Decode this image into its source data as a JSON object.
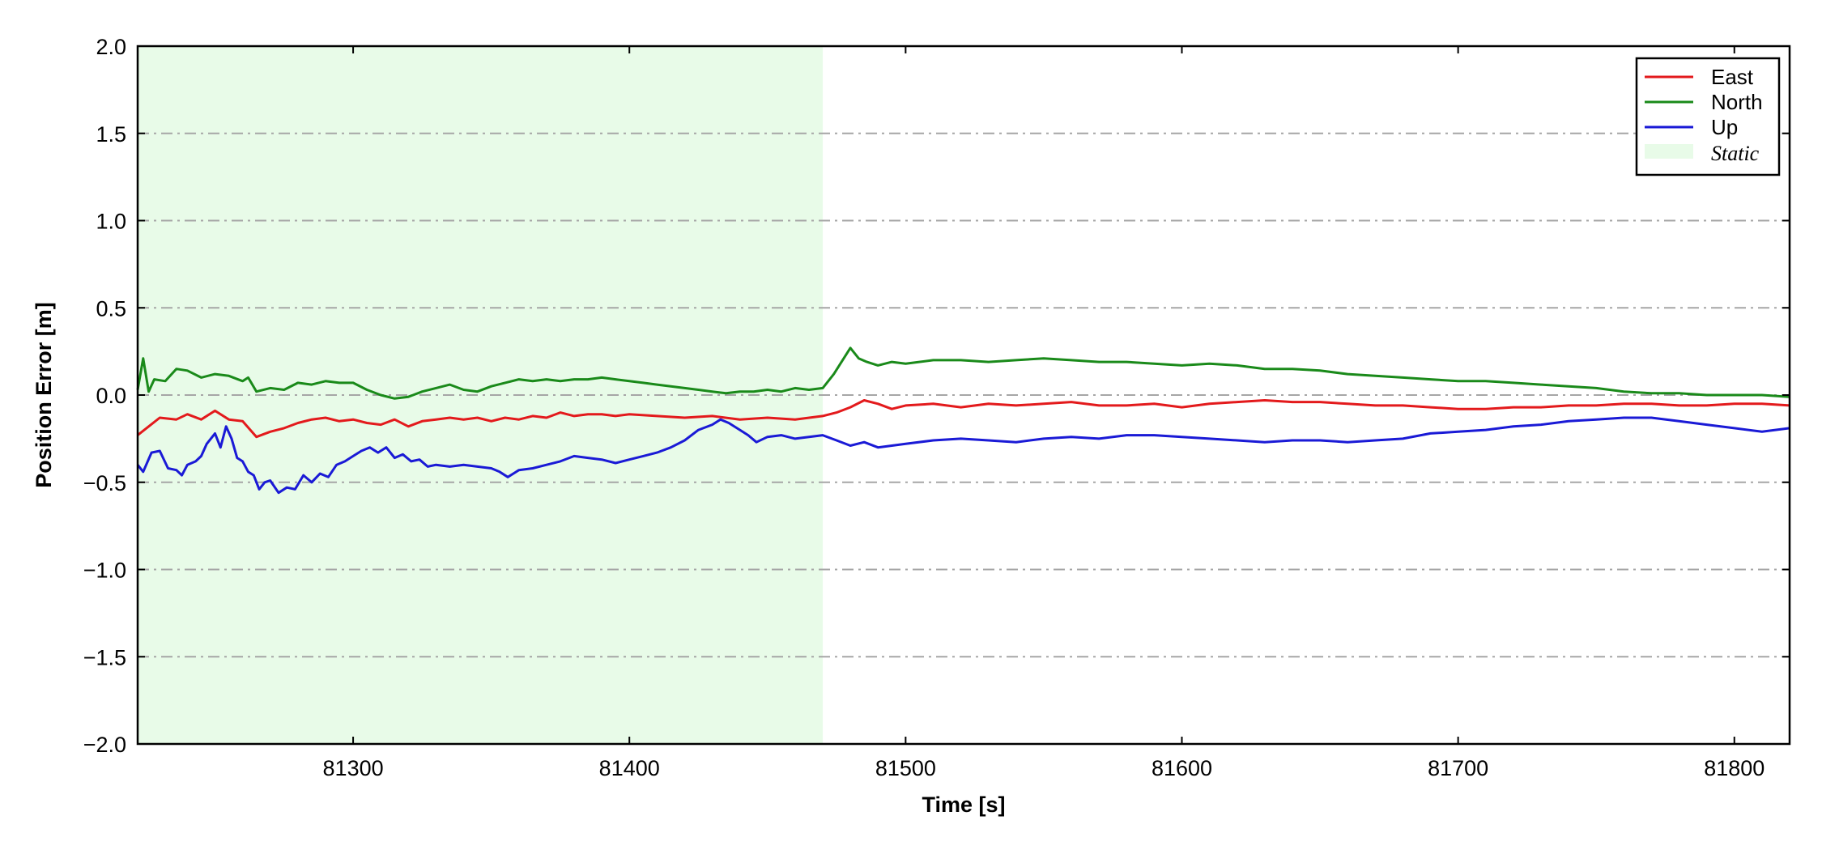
{
  "chart_data": {
    "type": "line",
    "title": "",
    "xlabel": "Time [s]",
    "ylabel": "Position Error [m]",
    "xlim": [
      81222,
      81820
    ],
    "ylim": [
      -2.0,
      2.0
    ],
    "xticks": [
      81300,
      81400,
      81500,
      81600,
      81700,
      81800
    ],
    "xtick_labels": [
      "81300",
      "81400",
      "81500",
      "81600",
      "81700",
      "81800"
    ],
    "yticks": [
      -2.0,
      -1.5,
      -1.0,
      -0.5,
      0.0,
      0.5,
      1.0,
      1.5,
      2.0
    ],
    "ytick_labels": [
      "−2.0",
      "−1.5",
      "−1.0",
      "−0.5",
      "0.0",
      "0.5",
      "1.0",
      "1.5",
      "2.0"
    ],
    "grid": "horizontal dash-dot",
    "legend_position": "top-right",
    "shaded_region": {
      "name": "Static",
      "x_range": [
        81222,
        81470
      ],
      "color": "#e8fbe8"
    },
    "series": [
      {
        "name": "East",
        "color": "#e31a1c",
        "points": [
          [
            81222,
            -0.23
          ],
          [
            81226,
            -0.18
          ],
          [
            81230,
            -0.13
          ],
          [
            81236,
            -0.14
          ],
          [
            81240,
            -0.11
          ],
          [
            81245,
            -0.14
          ],
          [
            81250,
            -0.09
          ],
          [
            81255,
            -0.14
          ],
          [
            81260,
            -0.15
          ],
          [
            81265,
            -0.24
          ],
          [
            81270,
            -0.21
          ],
          [
            81275,
            -0.19
          ],
          [
            81280,
            -0.16
          ],
          [
            81285,
            -0.14
          ],
          [
            81290,
            -0.13
          ],
          [
            81295,
            -0.15
          ],
          [
            81300,
            -0.14
          ],
          [
            81305,
            -0.16
          ],
          [
            81310,
            -0.17
          ],
          [
            81315,
            -0.14
          ],
          [
            81320,
            -0.18
          ],
          [
            81325,
            -0.15
          ],
          [
            81330,
            -0.14
          ],
          [
            81335,
            -0.13
          ],
          [
            81340,
            -0.14
          ],
          [
            81345,
            -0.13
          ],
          [
            81350,
            -0.15
          ],
          [
            81355,
            -0.13
          ],
          [
            81360,
            -0.14
          ],
          [
            81365,
            -0.12
          ],
          [
            81370,
            -0.13
          ],
          [
            81375,
            -0.1
          ],
          [
            81380,
            -0.12
          ],
          [
            81385,
            -0.11
          ],
          [
            81390,
            -0.11
          ],
          [
            81395,
            -0.12
          ],
          [
            81400,
            -0.11
          ],
          [
            81410,
            -0.12
          ],
          [
            81420,
            -0.13
          ],
          [
            81430,
            -0.12
          ],
          [
            81440,
            -0.14
          ],
          [
            81450,
            -0.13
          ],
          [
            81460,
            -0.14
          ],
          [
            81470,
            -0.12
          ],
          [
            81475,
            -0.1
          ],
          [
            81480,
            -0.07
          ],
          [
            81485,
            -0.03
          ],
          [
            81490,
            -0.05
          ],
          [
            81495,
            -0.08
          ],
          [
            81500,
            -0.06
          ],
          [
            81510,
            -0.05
          ],
          [
            81520,
            -0.07
          ],
          [
            81530,
            -0.05
          ],
          [
            81540,
            -0.06
          ],
          [
            81550,
            -0.05
          ],
          [
            81560,
            -0.04
          ],
          [
            81570,
            -0.06
          ],
          [
            81580,
            -0.06
          ],
          [
            81590,
            -0.05
          ],
          [
            81600,
            -0.07
          ],
          [
            81610,
            -0.05
          ],
          [
            81620,
            -0.04
          ],
          [
            81630,
            -0.03
          ],
          [
            81640,
            -0.04
          ],
          [
            81650,
            -0.04
          ],
          [
            81660,
            -0.05
          ],
          [
            81670,
            -0.06
          ],
          [
            81680,
            -0.06
          ],
          [
            81690,
            -0.07
          ],
          [
            81700,
            -0.08
          ],
          [
            81710,
            -0.08
          ],
          [
            81720,
            -0.07
          ],
          [
            81730,
            -0.07
          ],
          [
            81740,
            -0.06
          ],
          [
            81750,
            -0.06
          ],
          [
            81760,
            -0.05
          ],
          [
            81770,
            -0.05
          ],
          [
            81780,
            -0.06
          ],
          [
            81790,
            -0.06
          ],
          [
            81800,
            -0.05
          ],
          [
            81810,
            -0.05
          ],
          [
            81820,
            -0.06
          ]
        ]
      },
      {
        "name": "North",
        "color": "#1a8a1a",
        "points": [
          [
            81222,
            0.03
          ],
          [
            81224,
            0.21
          ],
          [
            81226,
            0.02
          ],
          [
            81228,
            0.09
          ],
          [
            81232,
            0.08
          ],
          [
            81236,
            0.15
          ],
          [
            81240,
            0.14
          ],
          [
            81245,
            0.1
          ],
          [
            81250,
            0.12
          ],
          [
            81255,
            0.11
          ],
          [
            81260,
            0.08
          ],
          [
            81262,
            0.1
          ],
          [
            81265,
            0.02
          ],
          [
            81270,
            0.04
          ],
          [
            81275,
            0.03
          ],
          [
            81280,
            0.07
          ],
          [
            81285,
            0.06
          ],
          [
            81290,
            0.08
          ],
          [
            81295,
            0.07
          ],
          [
            81300,
            0.07
          ],
          [
            81305,
            0.03
          ],
          [
            81310,
            0.0
          ],
          [
            81315,
            -0.02
          ],
          [
            81320,
            -0.01
          ],
          [
            81325,
            0.02
          ],
          [
            81330,
            0.04
          ],
          [
            81335,
            0.06
          ],
          [
            81340,
            0.03
          ],
          [
            81345,
            0.02
          ],
          [
            81350,
            0.05
          ],
          [
            81355,
            0.07
          ],
          [
            81360,
            0.09
          ],
          [
            81365,
            0.08
          ],
          [
            81370,
            0.09
          ],
          [
            81375,
            0.08
          ],
          [
            81380,
            0.09
          ],
          [
            81385,
            0.09
          ],
          [
            81390,
            0.1
          ],
          [
            81395,
            0.09
          ],
          [
            81400,
            0.08
          ],
          [
            81405,
            0.07
          ],
          [
            81410,
            0.06
          ],
          [
            81415,
            0.05
          ],
          [
            81420,
            0.04
          ],
          [
            81425,
            0.03
          ],
          [
            81430,
            0.02
          ],
          [
            81435,
            0.01
          ],
          [
            81440,
            0.02
          ],
          [
            81445,
            0.02
          ],
          [
            81450,
            0.03
          ],
          [
            81455,
            0.02
          ],
          [
            81460,
            0.04
          ],
          [
            81465,
            0.03
          ],
          [
            81470,
            0.04
          ],
          [
            81474,
            0.12
          ],
          [
            81478,
            0.22
          ],
          [
            81480,
            0.27
          ],
          [
            81483,
            0.21
          ],
          [
            81486,
            0.19
          ],
          [
            81490,
            0.17
          ],
          [
            81495,
            0.19
          ],
          [
            81500,
            0.18
          ],
          [
            81510,
            0.2
          ],
          [
            81520,
            0.2
          ],
          [
            81530,
            0.19
          ],
          [
            81540,
            0.2
          ],
          [
            81550,
            0.21
          ],
          [
            81560,
            0.2
          ],
          [
            81570,
            0.19
          ],
          [
            81580,
            0.19
          ],
          [
            81590,
            0.18
          ],
          [
            81600,
            0.17
          ],
          [
            81610,
            0.18
          ],
          [
            81620,
            0.17
          ],
          [
            81630,
            0.15
          ],
          [
            81640,
            0.15
          ],
          [
            81650,
            0.14
          ],
          [
            81660,
            0.12
          ],
          [
            81670,
            0.11
          ],
          [
            81680,
            0.1
          ],
          [
            81690,
            0.09
          ],
          [
            81700,
            0.08
          ],
          [
            81710,
            0.08
          ],
          [
            81720,
            0.07
          ],
          [
            81730,
            0.06
          ],
          [
            81740,
            0.05
          ],
          [
            81750,
            0.04
          ],
          [
            81760,
            0.02
          ],
          [
            81770,
            0.01
          ],
          [
            81780,
            0.01
          ],
          [
            81790,
            0.0
          ],
          [
            81800,
            0.0
          ],
          [
            81810,
            0.0
          ],
          [
            81820,
            -0.01
          ]
        ]
      },
      {
        "name": "Up",
        "color": "#1a1ad6",
        "points": [
          [
            81222,
            -0.4
          ],
          [
            81224,
            -0.44
          ],
          [
            81227,
            -0.33
          ],
          [
            81230,
            -0.32
          ],
          [
            81233,
            -0.42
          ],
          [
            81236,
            -0.43
          ],
          [
            81238,
            -0.46
          ],
          [
            81240,
            -0.4
          ],
          [
            81243,
            -0.38
          ],
          [
            81245,
            -0.35
          ],
          [
            81247,
            -0.28
          ],
          [
            81250,
            -0.22
          ],
          [
            81252,
            -0.3
          ],
          [
            81254,
            -0.18
          ],
          [
            81256,
            -0.25
          ],
          [
            81258,
            -0.36
          ],
          [
            81260,
            -0.38
          ],
          [
            81262,
            -0.44
          ],
          [
            81264,
            -0.46
          ],
          [
            81266,
            -0.54
          ],
          [
            81268,
            -0.5
          ],
          [
            81270,
            -0.49
          ],
          [
            81273,
            -0.56
          ],
          [
            81276,
            -0.53
          ],
          [
            81279,
            -0.54
          ],
          [
            81282,
            -0.46
          ],
          [
            81285,
            -0.5
          ],
          [
            81288,
            -0.45
          ],
          [
            81291,
            -0.47
          ],
          [
            81294,
            -0.4
          ],
          [
            81297,
            -0.38
          ],
          [
            81300,
            -0.35
          ],
          [
            81303,
            -0.32
          ],
          [
            81306,
            -0.3
          ],
          [
            81309,
            -0.33
          ],
          [
            81312,
            -0.3
          ],
          [
            81315,
            -0.36
          ],
          [
            81318,
            -0.34
          ],
          [
            81321,
            -0.38
          ],
          [
            81324,
            -0.37
          ],
          [
            81327,
            -0.41
          ],
          [
            81330,
            -0.4
          ],
          [
            81335,
            -0.41
          ],
          [
            81340,
            -0.4
          ],
          [
            81345,
            -0.41
          ],
          [
            81350,
            -0.42
          ],
          [
            81353,
            -0.44
          ],
          [
            81356,
            -0.47
          ],
          [
            81360,
            -0.43
          ],
          [
            81365,
            -0.42
          ],
          [
            81370,
            -0.4
          ],
          [
            81375,
            -0.38
          ],
          [
            81380,
            -0.35
          ],
          [
            81385,
            -0.36
          ],
          [
            81390,
            -0.37
          ],
          [
            81395,
            -0.39
          ],
          [
            81400,
            -0.37
          ],
          [
            81405,
            -0.35
          ],
          [
            81410,
            -0.33
          ],
          [
            81415,
            -0.3
          ],
          [
            81420,
            -0.26
          ],
          [
            81425,
            -0.2
          ],
          [
            81430,
            -0.17
          ],
          [
            81433,
            -0.14
          ],
          [
            81436,
            -0.16
          ],
          [
            81440,
            -0.2
          ],
          [
            81443,
            -0.23
          ],
          [
            81446,
            -0.27
          ],
          [
            81450,
            -0.24
          ],
          [
            81455,
            -0.23
          ],
          [
            81460,
            -0.25
          ],
          [
            81465,
            -0.24
          ],
          [
            81470,
            -0.23
          ],
          [
            81475,
            -0.26
          ],
          [
            81480,
            -0.29
          ],
          [
            81485,
            -0.27
          ],
          [
            81490,
            -0.3
          ],
          [
            81495,
            -0.29
          ],
          [
            81500,
            -0.28
          ],
          [
            81510,
            -0.26
          ],
          [
            81520,
            -0.25
          ],
          [
            81530,
            -0.26
          ],
          [
            81540,
            -0.27
          ],
          [
            81550,
            -0.25
          ],
          [
            81560,
            -0.24
          ],
          [
            81570,
            -0.25
          ],
          [
            81580,
            -0.23
          ],
          [
            81590,
            -0.23
          ],
          [
            81600,
            -0.24
          ],
          [
            81610,
            -0.25
          ],
          [
            81620,
            -0.26
          ],
          [
            81630,
            -0.27
          ],
          [
            81640,
            -0.26
          ],
          [
            81650,
            -0.26
          ],
          [
            81660,
            -0.27
          ],
          [
            81670,
            -0.26
          ],
          [
            81680,
            -0.25
          ],
          [
            81690,
            -0.22
          ],
          [
            81700,
            -0.21
          ],
          [
            81710,
            -0.2
          ],
          [
            81720,
            -0.18
          ],
          [
            81730,
            -0.17
          ],
          [
            81740,
            -0.15
          ],
          [
            81750,
            -0.14
          ],
          [
            81760,
            -0.13
          ],
          [
            81770,
            -0.13
          ],
          [
            81780,
            -0.15
          ],
          [
            81790,
            -0.17
          ],
          [
            81800,
            -0.19
          ],
          [
            81810,
            -0.21
          ],
          [
            81820,
            -0.19
          ]
        ]
      }
    ]
  }
}
